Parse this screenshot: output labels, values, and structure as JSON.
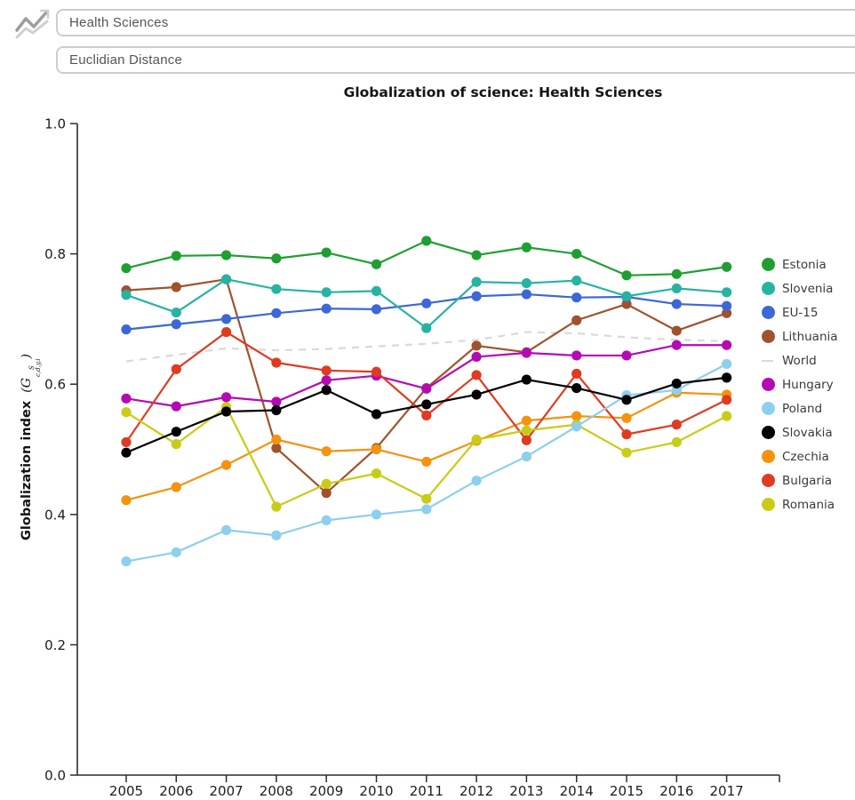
{
  "header": {
    "icon": "line-chart-icon",
    "category_select": {
      "value": "Health Sciences"
    },
    "metric_select": {
      "value": "Euclidian Distance"
    }
  },
  "chart_data": {
    "type": "line",
    "title": "Globalization of science: Health Sciences",
    "ylabel": "Globalization index",
    "ylabel_formula": {
      "open": "(G",
      "sup": "S",
      "sub": "c,d,y,i",
      "close": ")"
    },
    "xlabel": "",
    "x": [
      2005,
      2006,
      2007,
      2008,
      2009,
      2010,
      2011,
      2012,
      2013,
      2014,
      2015,
      2016,
      2017
    ],
    "ylim": [
      0.0,
      1.0
    ],
    "yticks": [
      0.0,
      0.2,
      0.4,
      0.6,
      0.8,
      1.0
    ],
    "ytick_labels": [
      "0.0",
      "0.2",
      "0.4",
      "0.6",
      "0.8",
      "1.0"
    ],
    "grid": false,
    "legend_position": "right",
    "axis_color": "#2b2b2b",
    "series": [
      {
        "name": "Estonia",
        "color": "#1f9e31",
        "dash": false,
        "marker": true,
        "values": [
          0.778,
          0.797,
          0.798,
          0.793,
          0.802,
          0.784,
          0.82,
          0.798,
          0.81,
          0.8,
          0.767,
          0.769,
          0.78
        ]
      },
      {
        "name": "Slovenia",
        "color": "#26b3a2",
        "dash": false,
        "marker": true,
        "values": [
          0.737,
          0.71,
          0.761,
          0.746,
          0.741,
          0.743,
          0.686,
          0.757,
          0.755,
          0.759,
          0.735,
          0.747,
          0.741
        ]
      },
      {
        "name": "EU-15",
        "color": "#3d67d6",
        "dash": false,
        "marker": true,
        "values": [
          0.684,
          0.692,
          0.7,
          0.709,
          0.716,
          0.715,
          0.724,
          0.735,
          0.738,
          0.733,
          0.734,
          0.723,
          0.72
        ]
      },
      {
        "name": "Lithuania",
        "color": "#a0522d",
        "dash": false,
        "marker": true,
        "values": [
          0.744,
          0.749,
          0.761,
          0.502,
          0.433,
          0.502,
          0.594,
          0.659,
          0.649,
          0.698,
          0.723,
          0.682,
          0.709
        ]
      },
      {
        "name": "World",
        "color": "#d9d9d9",
        "dash": true,
        "marker": false,
        "values": [
          0.635,
          0.645,
          0.655,
          0.652,
          0.654,
          0.658,
          0.662,
          0.668,
          0.68,
          0.678,
          0.672,
          0.668,
          0.666
        ]
      },
      {
        "name": "Hungary",
        "color": "#b40ab4",
        "dash": false,
        "marker": true,
        "values": [
          0.578,
          0.566,
          0.58,
          0.573,
          0.606,
          0.613,
          0.593,
          0.642,
          0.648,
          0.644,
          0.644,
          0.66,
          0.66
        ]
      },
      {
        "name": "Poland",
        "color": "#8ccfee",
        "dash": false,
        "marker": true,
        "values": [
          0.328,
          0.342,
          0.376,
          0.368,
          0.391,
          0.4,
          0.408,
          0.452,
          0.489,
          0.535,
          0.583,
          0.591,
          0.631
        ]
      },
      {
        "name": "Slovakia",
        "color": "#000000",
        "dash": false,
        "marker": true,
        "values": [
          0.495,
          0.527,
          0.558,
          0.56,
          0.591,
          0.554,
          0.569,
          0.584,
          0.607,
          0.594,
          0.576,
          0.601,
          0.61
        ]
      },
      {
        "name": "Czechia",
        "color": "#f5920e",
        "dash": false,
        "marker": true,
        "values": [
          0.422,
          0.442,
          0.476,
          0.515,
          0.497,
          0.5,
          0.481,
          0.513,
          0.544,
          0.551,
          0.548,
          0.587,
          0.584
        ]
      },
      {
        "name": "Bulgaria",
        "color": "#e03a20",
        "dash": false,
        "marker": true,
        "values": [
          0.511,
          0.623,
          0.68,
          0.633,
          0.621,
          0.619,
          0.552,
          0.614,
          0.514,
          0.616,
          0.523,
          0.538,
          0.576
        ]
      },
      {
        "name": "Romania",
        "color": "#c8cc16",
        "dash": false,
        "marker": true,
        "values": [
          0.557,
          0.508,
          0.565,
          0.412,
          0.447,
          0.463,
          0.424,
          0.515,
          0.529,
          0.538,
          0.495,
          0.511,
          0.551
        ]
      }
    ],
    "draw_order": [
      "World",
      "Lithuania",
      "EU-15",
      "Slovenia",
      "Estonia",
      "Hungary",
      "Czechia",
      "Bulgaria",
      "Romania",
      "Poland",
      "Slovakia"
    ]
  }
}
